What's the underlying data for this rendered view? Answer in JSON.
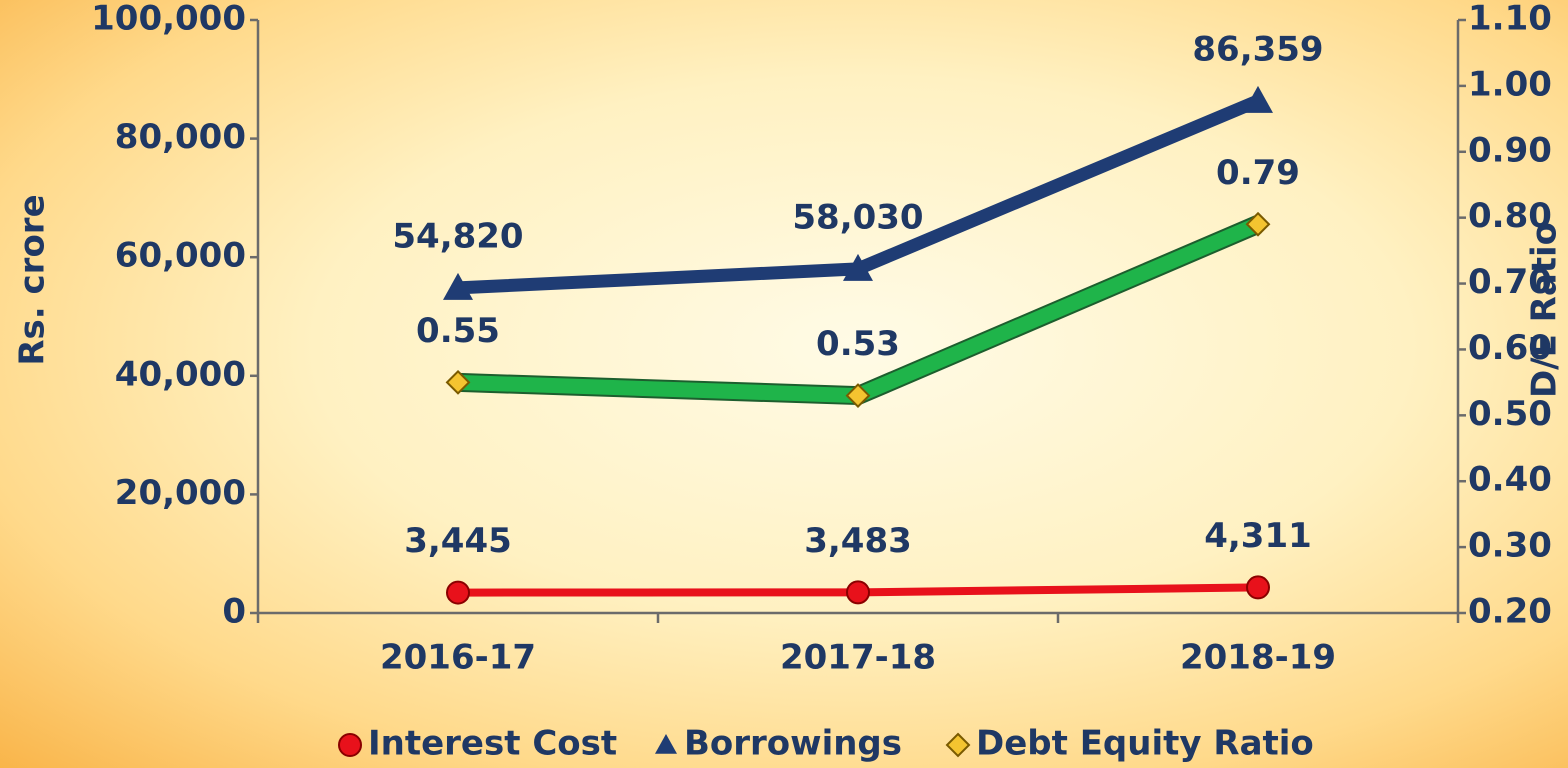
{
  "chart_data": {
    "type": "line",
    "categories": [
      "2016-17",
      "2017-18",
      "2018-19"
    ],
    "ylabel": "Rs. crore",
    "y2label": "D/E Ratio",
    "ylim": [
      0,
      100000
    ],
    "yticks": [
      0,
      {
        "value": 20000,
        "label": "20,000"
      },
      {
        "value": 40000,
        "label": "40,000"
      },
      {
        "value": 60000,
        "label": "60,000"
      },
      {
        "value": 80000,
        "label": "80,000"
      },
      {
        "value": 100000,
        "label": "100,000"
      }
    ],
    "y2lim": [
      0.2,
      1.1
    ],
    "y2ticks": [
      {
        "value": 0.2,
        "label": "0.20"
      },
      {
        "value": 0.3,
        "label": "0.30"
      },
      {
        "value": 0.4,
        "label": "0.40"
      },
      {
        "value": 0.5,
        "label": "0.50"
      },
      {
        "value": 0.6,
        "label": "0.60"
      },
      {
        "value": 0.7,
        "label": "0.70"
      },
      {
        "value": 0.8,
        "label": "0.80"
      },
      {
        "value": 0.9,
        "label": "0.90"
      },
      {
        "value": 1.0,
        "label": "1.00"
      },
      {
        "value": 1.1,
        "label": "1.10"
      }
    ],
    "legend": "bottom",
    "series": [
      {
        "name": "Interest Cost",
        "color": "#e8111b",
        "marker": "circle",
        "marker_color": "#e8111b",
        "values": [
          3445,
          3483,
          4311
        ],
        "value_labels": [
          "3,445",
          "3,483",
          "4,311"
        ]
      },
      {
        "name": "Borrowings",
        "color": "#1f3c74",
        "marker": "triangle",
        "marker_color": "#1f3c74",
        "values": [
          54820,
          58030,
          86359
        ],
        "value_labels": [
          "54,820",
          "58,030",
          "86,359"
        ]
      },
      {
        "name": "Debt Equity Ratio",
        "color": "#1fb44a",
        "marker": "diamond",
        "marker_color": "#f4c430",
        "axis": "y2",
        "values": [
          0.55,
          0.53,
          0.79
        ]
      }
    ]
  }
}
